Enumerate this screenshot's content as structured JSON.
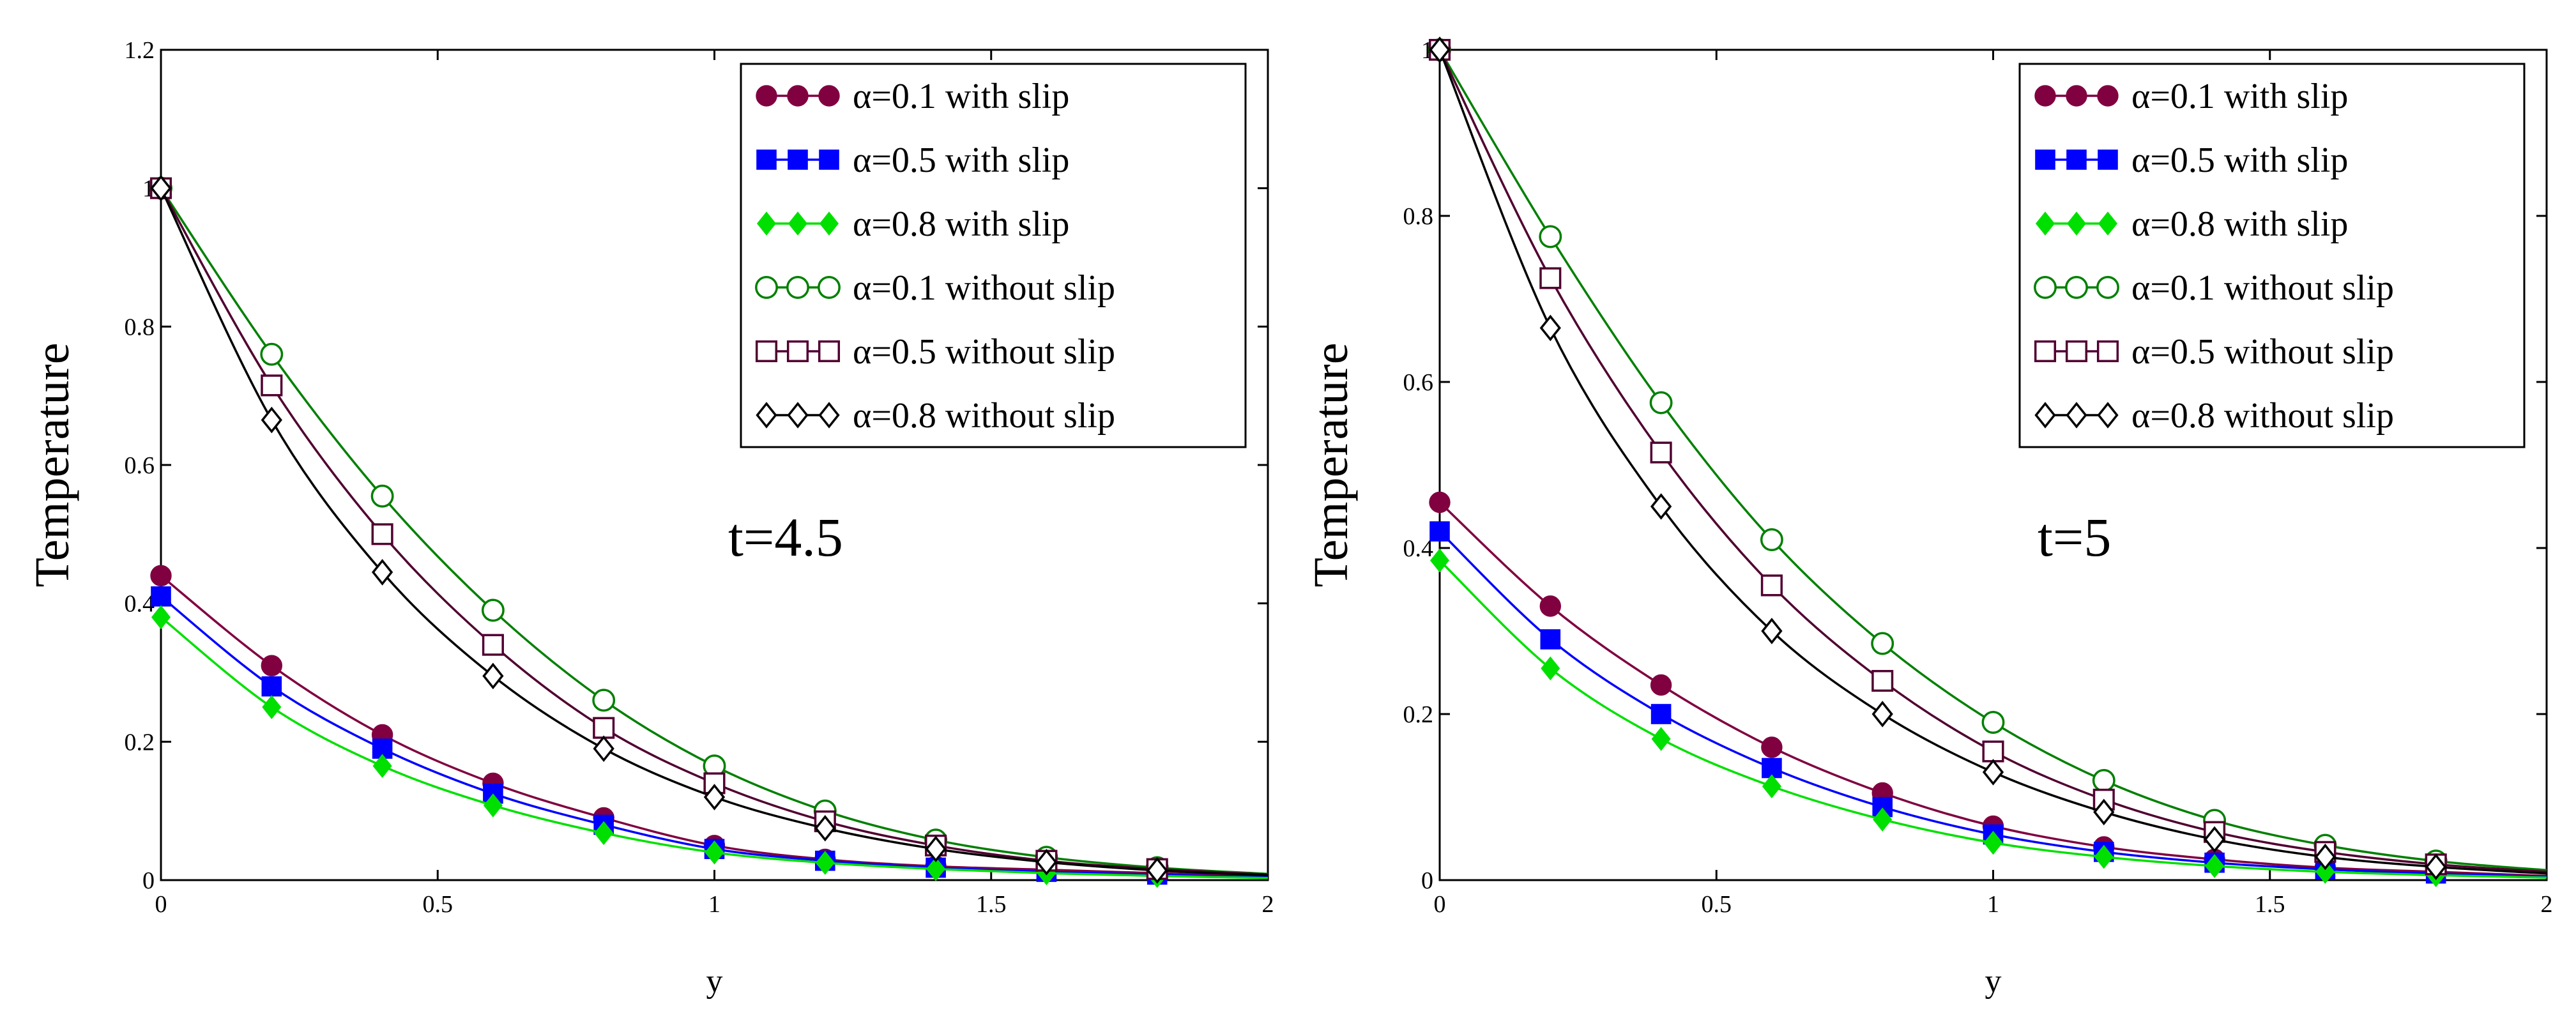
{
  "chart_data": [
    {
      "type": "line",
      "annotation": "t=4.5",
      "xlabel": "y",
      "ylabel": "Temperature",
      "xlim": [
        0,
        2
      ],
      "ylim": [
        0,
        1.2
      ],
      "xticks": [
        "0",
        "0.5",
        "1",
        "1.5",
        "2"
      ],
      "yticks": [
        "0",
        "0.2",
        "0.4",
        "0.6",
        "0.8",
        "1",
        "1.2"
      ],
      "grid": false,
      "legend_position": "top-right",
      "x": [
        0,
        0.2,
        0.4,
        0.6,
        0.8,
        1.0,
        1.2,
        1.4,
        1.6,
        1.8,
        2.0
      ],
      "series": [
        {
          "name": "α=0.1 with slip",
          "color": "#800040",
          "marker": "filled-circle",
          "values": [
            0.44,
            0.31,
            0.21,
            0.14,
            0.09,
            0.05,
            0.03,
            0.02,
            0.015,
            0.01,
            0.005
          ]
        },
        {
          "name": "α=0.5 with slip",
          "color": "#0000ff",
          "marker": "filled-square",
          "values": [
            0.41,
            0.28,
            0.19,
            0.125,
            0.08,
            0.045,
            0.028,
            0.018,
            0.012,
            0.008,
            0.004
          ]
        },
        {
          "name": "α=0.8 with slip",
          "color": "#00e000",
          "marker": "filled-diamond",
          "values": [
            0.38,
            0.25,
            0.165,
            0.108,
            0.068,
            0.04,
            0.025,
            0.016,
            0.01,
            0.006,
            0.003
          ]
        },
        {
          "name": "α=0.1 without slip",
          "color": "#008000",
          "marker": "open-circle",
          "values": [
            1.0,
            0.76,
            0.555,
            0.39,
            0.26,
            0.165,
            0.1,
            0.058,
            0.033,
            0.018,
            0.009
          ]
        },
        {
          "name": "α=0.5 without slip",
          "color": "#500030",
          "marker": "open-square",
          "values": [
            1.0,
            0.715,
            0.5,
            0.34,
            0.22,
            0.14,
            0.085,
            0.05,
            0.028,
            0.016,
            0.008
          ]
        },
        {
          "name": "α=0.8 without slip",
          "color": "#000000",
          "marker": "open-diamond",
          "values": [
            1.0,
            0.665,
            0.445,
            0.295,
            0.19,
            0.12,
            0.075,
            0.045,
            0.026,
            0.014,
            0.007
          ]
        }
      ]
    },
    {
      "type": "line",
      "annotation": "t=5",
      "xlabel": "y",
      "ylabel": "Temperature",
      "xlim": [
        0,
        2
      ],
      "ylim": [
        0,
        1
      ],
      "xticks": [
        "0",
        "0.5",
        "1",
        "1.5",
        "2"
      ],
      "yticks": [
        "0",
        "0.2",
        "0.4",
        "0.6",
        "0.8",
        "1"
      ],
      "grid": false,
      "legend_position": "top-right",
      "x": [
        0,
        0.2,
        0.4,
        0.6,
        0.8,
        1.0,
        1.2,
        1.4,
        1.6,
        1.8,
        2.0
      ],
      "series": [
        {
          "name": "α=0.1 with slip",
          "color": "#800040",
          "marker": "filled-circle",
          "values": [
            0.455,
            0.33,
            0.235,
            0.16,
            0.105,
            0.065,
            0.04,
            0.025,
            0.015,
            0.01,
            0.005
          ]
        },
        {
          "name": "α=0.5 with slip",
          "color": "#0000ff",
          "marker": "filled-square",
          "values": [
            0.42,
            0.29,
            0.2,
            0.135,
            0.088,
            0.055,
            0.034,
            0.021,
            0.013,
            0.008,
            0.004
          ]
        },
        {
          "name": "α=0.8 with slip",
          "color": "#00e000",
          "marker": "filled-diamond",
          "values": [
            0.385,
            0.255,
            0.17,
            0.113,
            0.073,
            0.045,
            0.028,
            0.017,
            0.01,
            0.006,
            0.003
          ]
        },
        {
          "name": "α=0.1 without slip",
          "color": "#008000",
          "marker": "open-circle",
          "values": [
            1.0,
            0.775,
            0.575,
            0.41,
            0.285,
            0.19,
            0.12,
            0.072,
            0.042,
            0.023,
            0.012
          ]
        },
        {
          "name": "α=0.5 without slip",
          "color": "#500030",
          "marker": "open-square",
          "values": [
            1.0,
            0.725,
            0.515,
            0.355,
            0.24,
            0.155,
            0.097,
            0.058,
            0.034,
            0.019,
            0.01
          ]
        },
        {
          "name": "α=0.8 without slip",
          "color": "#000000",
          "marker": "open-diamond",
          "values": [
            1.0,
            0.665,
            0.45,
            0.3,
            0.2,
            0.13,
            0.082,
            0.049,
            0.028,
            0.016,
            0.008
          ]
        }
      ]
    }
  ]
}
